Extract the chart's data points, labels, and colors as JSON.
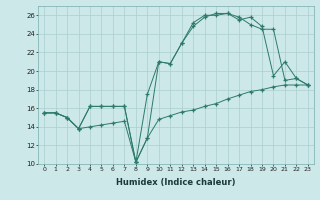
{
  "xlabel": "Humidex (Indice chaleur)",
  "background_color": "#cce8e8",
  "grid_color": "#aacfcf",
  "line_color": "#2d7a6a",
  "xlim": [
    -0.5,
    23.5
  ],
  "ylim": [
    10,
    27
  ],
  "yticks": [
    10,
    12,
    14,
    16,
    18,
    20,
    22,
    24,
    26
  ],
  "xticks": [
    0,
    1,
    2,
    3,
    4,
    5,
    6,
    7,
    8,
    9,
    10,
    11,
    12,
    13,
    14,
    15,
    16,
    17,
    18,
    19,
    20,
    21,
    22,
    23
  ],
  "line1_x": [
    0,
    1,
    2,
    3,
    4,
    5,
    6,
    7,
    8,
    9,
    10,
    11,
    12,
    13,
    14,
    15,
    16,
    17,
    18,
    19,
    20,
    21,
    22,
    23
  ],
  "line1_y": [
    15.5,
    15.5,
    15.0,
    13.8,
    16.2,
    16.2,
    16.2,
    16.2,
    10.2,
    12.8,
    21.0,
    20.8,
    23.0,
    24.8,
    25.8,
    26.2,
    26.2,
    25.5,
    25.8,
    24.8,
    19.5,
    21.0,
    19.2,
    18.5
  ],
  "line2_x": [
    0,
    1,
    2,
    3,
    4,
    5,
    6,
    7,
    8,
    9,
    10,
    11,
    12,
    13,
    14,
    15,
    16,
    17,
    18,
    19,
    20,
    21,
    22,
    23
  ],
  "line2_y": [
    15.5,
    15.5,
    15.0,
    13.8,
    16.2,
    16.2,
    16.2,
    16.2,
    10.2,
    17.5,
    21.0,
    20.8,
    23.0,
    25.2,
    26.0,
    26.0,
    26.2,
    25.8,
    25.0,
    24.5,
    24.5,
    19.0,
    19.2,
    18.5
  ],
  "line3_x": [
    0,
    1,
    2,
    3,
    4,
    5,
    6,
    7,
    8,
    9,
    10,
    11,
    12,
    13,
    14,
    15,
    16,
    17,
    18,
    19,
    20,
    21,
    22,
    23
  ],
  "line3_y": [
    15.5,
    15.5,
    15.0,
    13.8,
    14.0,
    14.2,
    14.4,
    14.6,
    10.2,
    12.8,
    14.8,
    15.2,
    15.6,
    15.8,
    16.2,
    16.5,
    17.0,
    17.4,
    17.8,
    18.0,
    18.3,
    18.5,
    18.5,
    18.5
  ]
}
